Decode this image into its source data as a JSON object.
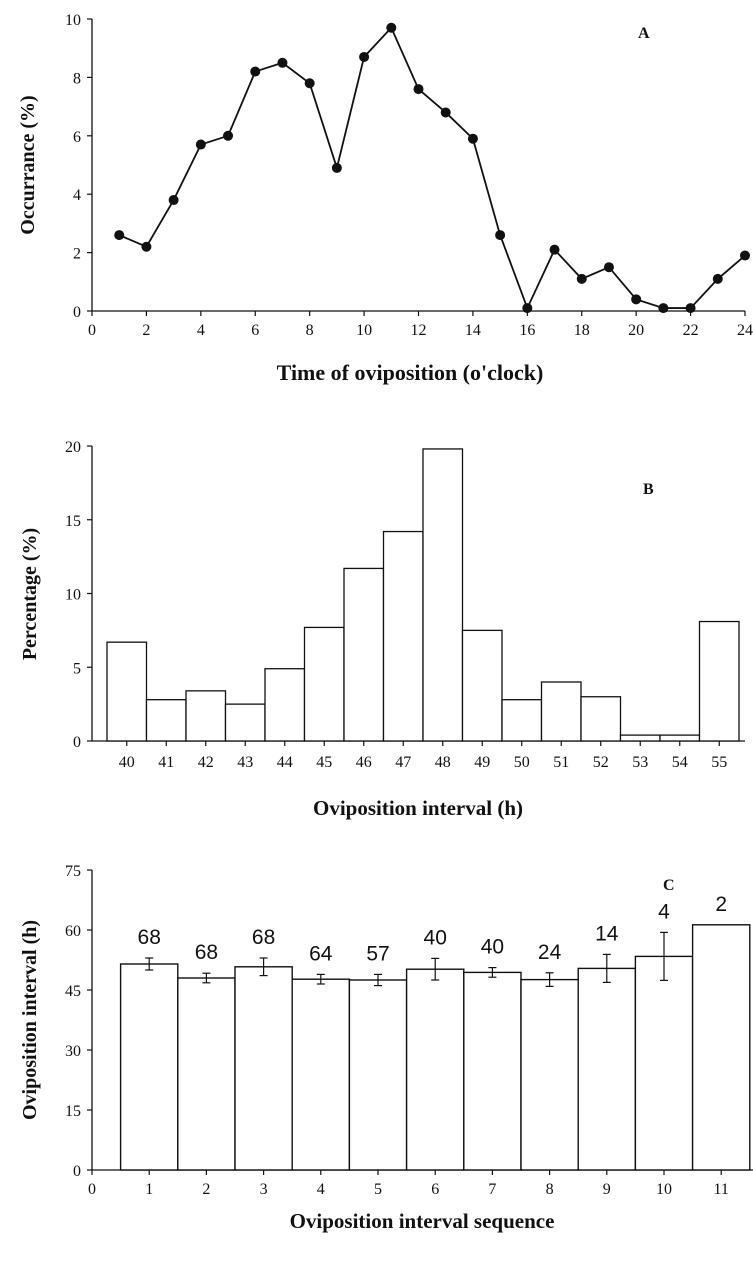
{
  "chart_data": [
    {
      "panel": "A",
      "type": "line",
      "xlabel": "Time of oviposition (o'clock)",
      "ylabel": "Occurrance (%)",
      "xlim": [
        0,
        24
      ],
      "ylim": [
        0,
        10
      ],
      "xticks": [
        0,
        2,
        4,
        6,
        8,
        10,
        12,
        14,
        16,
        18,
        20,
        22,
        24
      ],
      "yticks": [
        0,
        2,
        4,
        6,
        8,
        10
      ],
      "grid": false,
      "series": [
        {
          "x": [
            1,
            2,
            3,
            4,
            5,
            6,
            7,
            8,
            9,
            10,
            11,
            12,
            13,
            14,
            15,
            16,
            17,
            18,
            19,
            20,
            21,
            22,
            23,
            24
          ],
          "y": [
            2.6,
            2.2,
            3.8,
            5.7,
            6.0,
            8.2,
            8.5,
            7.8,
            4.9,
            8.7,
            9.7,
            7.6,
            6.8,
            5.9,
            2.6,
            0.1,
            2.1,
            1.1,
            1.5,
            0.4,
            0.1,
            0.1,
            1.1,
            1.9
          ]
        }
      ]
    },
    {
      "panel": "B",
      "type": "bar",
      "xlabel": "Oviposition interval (h)",
      "ylabel": "Percentage (%)",
      "ylim": [
        0,
        20
      ],
      "yticks": [
        0,
        5,
        10,
        15,
        20
      ],
      "grid": false,
      "categories": [
        "40",
        "41",
        "42",
        "43",
        "44",
        "45",
        "46",
        "47",
        "48",
        "49",
        "50",
        "51",
        "52",
        "53",
        "54",
        "55"
      ],
      "values": [
        6.7,
        2.8,
        3.4,
        2.5,
        4.9,
        7.7,
        11.7,
        14.2,
        19.8,
        7.5,
        2.8,
        4.0,
        3.0,
        0.4,
        0.4,
        8.1
      ]
    },
    {
      "panel": "C",
      "type": "bar",
      "xlabel": "Oviposition interval sequence",
      "ylabel": "Oviposition interval (h)",
      "xlim": [
        0,
        11
      ],
      "ylim": [
        0,
        75
      ],
      "xticks": [
        0,
        1,
        2,
        3,
        4,
        5,
        6,
        7,
        8,
        9,
        10,
        11
      ],
      "yticks": [
        0,
        15,
        30,
        45,
        60,
        75
      ],
      "grid": false,
      "categories": [
        "1",
        "2",
        "3",
        "4",
        "5",
        "6",
        "7",
        "8",
        "9",
        "10",
        "11"
      ],
      "values": [
        51.5,
        48.0,
        50.8,
        47.7,
        47.5,
        50.2,
        49.4,
        47.6,
        50.4,
        53.4,
        61.3
      ],
      "errors": [
        1.5,
        1.2,
        2.2,
        1.2,
        1.4,
        2.7,
        1.2,
        1.7,
        3.5,
        6.0,
        0
      ],
      "n_labels": [
        "68",
        "68",
        "68",
        "64",
        "57",
        "40",
        "40",
        "24",
        "14",
        "4",
        "2"
      ]
    }
  ]
}
